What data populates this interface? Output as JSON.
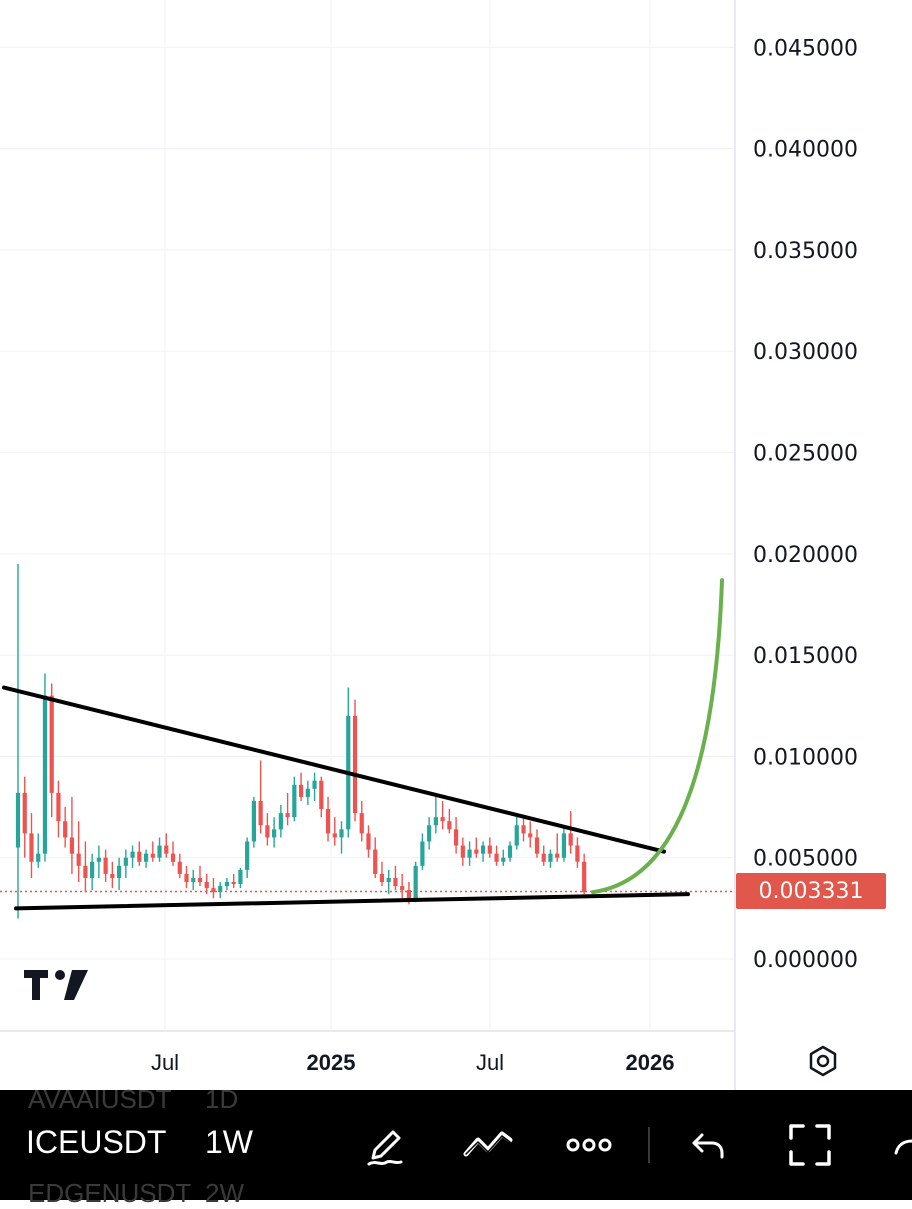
{
  "chart": {
    "price_axis": [
      "0.045000",
      "0.040000",
      "0.035000",
      "0.030000",
      "0.025000",
      "0.020000",
      "0.015000",
      "0.010000",
      "0.005000",
      "0.000000"
    ],
    "time_axis": [
      {
        "label": "Jul",
        "bold": false
      },
      {
        "label": "2025",
        "bold": true
      },
      {
        "label": "Jul",
        "bold": false
      },
      {
        "label": "2026",
        "bold": true
      }
    ],
    "last_price": "0.003331",
    "up_color": "#26a69a",
    "down_color": "#ef5350",
    "last_price_color": "#e2574c",
    "projection_color": "#6ab04c",
    "trendline_color": "#000000"
  },
  "chart_data": {
    "type": "candlestick",
    "symbol": "ICEUSDT",
    "interval": "1W",
    "ylim": [
      -0.0013,
      0.0472
    ],
    "x_ticks": [
      "Jul",
      "2025",
      "Jul",
      "2026"
    ],
    "candles_ohlc": [
      [
        0.0055,
        0.0195,
        0.002,
        0.0082
      ],
      [
        0.0082,
        0.009,
        0.005,
        0.0062
      ],
      [
        0.0062,
        0.0072,
        0.004,
        0.0048
      ],
      [
        0.0048,
        0.0062,
        0.0045,
        0.0052
      ],
      [
        0.0052,
        0.0141,
        0.0048,
        0.013
      ],
      [
        0.013,
        0.0136,
        0.007,
        0.0082
      ],
      [
        0.0082,
        0.0088,
        0.006,
        0.0068
      ],
      [
        0.0068,
        0.0075,
        0.0055,
        0.006
      ],
      [
        0.006,
        0.008,
        0.0042,
        0.0052
      ],
      [
        0.0052,
        0.0068,
        0.0038,
        0.0046
      ],
      [
        0.0046,
        0.0058,
        0.0033,
        0.004
      ],
      [
        0.004,
        0.0052,
        0.0034,
        0.0048
      ],
      [
        0.0048,
        0.0056,
        0.004,
        0.005
      ],
      [
        0.005,
        0.0054,
        0.0038,
        0.0042
      ],
      [
        0.0042,
        0.0048,
        0.0035,
        0.004
      ],
      [
        0.004,
        0.005,
        0.0034,
        0.0046
      ],
      [
        0.0046,
        0.0054,
        0.004,
        0.005
      ],
      [
        0.005,
        0.0056,
        0.0045,
        0.0053
      ],
      [
        0.0053,
        0.0058,
        0.0046,
        0.0048
      ],
      [
        0.0048,
        0.0054,
        0.0045,
        0.0052
      ],
      [
        0.0052,
        0.0058,
        0.0048,
        0.005
      ],
      [
        0.005,
        0.006,
        0.0048,
        0.0056
      ],
      [
        0.0056,
        0.0062,
        0.005,
        0.0052
      ],
      [
        0.0052,
        0.0058,
        0.0046,
        0.0048
      ],
      [
        0.0048,
        0.0052,
        0.004,
        0.0042
      ],
      [
        0.0042,
        0.0046,
        0.0035,
        0.0038
      ],
      [
        0.0038,
        0.0044,
        0.0034,
        0.004
      ],
      [
        0.004,
        0.0046,
        0.0036,
        0.0038
      ],
      [
        0.0038,
        0.0042,
        0.0032,
        0.0035
      ],
      [
        0.0035,
        0.004,
        0.003,
        0.0033
      ],
      [
        0.0033,
        0.0038,
        0.003,
        0.0036
      ],
      [
        0.0036,
        0.004,
        0.0034,
        0.0038
      ],
      [
        0.0038,
        0.0042,
        0.0035,
        0.0037
      ],
      [
        0.0037,
        0.0045,
        0.0035,
        0.0044
      ],
      [
        0.0044,
        0.006,
        0.004,
        0.0058
      ],
      [
        0.0058,
        0.008,
        0.0055,
        0.0078
      ],
      [
        0.0078,
        0.0098,
        0.0062,
        0.0066
      ],
      [
        0.0066,
        0.0072,
        0.0056,
        0.006
      ],
      [
        0.006,
        0.007,
        0.0055,
        0.0064
      ],
      [
        0.0064,
        0.0076,
        0.006,
        0.0072
      ],
      [
        0.0072,
        0.0082,
        0.0066,
        0.007
      ],
      [
        0.007,
        0.009,
        0.0068,
        0.0086
      ],
      [
        0.0086,
        0.0092,
        0.0078,
        0.008
      ],
      [
        0.008,
        0.0088,
        0.0076,
        0.0084
      ],
      [
        0.0084,
        0.0092,
        0.0078,
        0.0088
      ],
      [
        0.0088,
        0.009,
        0.007,
        0.0074
      ],
      [
        0.0074,
        0.008,
        0.0058,
        0.0062
      ],
      [
        0.0062,
        0.007,
        0.0056,
        0.006
      ],
      [
        0.006,
        0.0068,
        0.0052,
        0.0064
      ],
      [
        0.0064,
        0.0134,
        0.006,
        0.012
      ],
      [
        0.012,
        0.0128,
        0.0068,
        0.0072
      ],
      [
        0.0072,
        0.0078,
        0.0058,
        0.0062
      ],
      [
        0.0062,
        0.0066,
        0.005,
        0.0054
      ],
      [
        0.0054,
        0.006,
        0.004,
        0.0042
      ],
      [
        0.0042,
        0.0048,
        0.0036,
        0.0038
      ],
      [
        0.0038,
        0.0044,
        0.0032,
        0.004
      ],
      [
        0.004,
        0.0046,
        0.0034,
        0.0036
      ],
      [
        0.0036,
        0.0042,
        0.003,
        0.0034
      ],
      [
        0.0034,
        0.0038,
        0.0027,
        0.003
      ],
      [
        0.003,
        0.0048,
        0.0028,
        0.0046
      ],
      [
        0.0046,
        0.0062,
        0.0044,
        0.0058
      ],
      [
        0.0058,
        0.007,
        0.0054,
        0.0066
      ],
      [
        0.0066,
        0.0082,
        0.0062,
        0.007
      ],
      [
        0.007,
        0.0078,
        0.0064,
        0.0068
      ],
      [
        0.0068,
        0.0074,
        0.0062,
        0.0064
      ],
      [
        0.0064,
        0.007,
        0.0052,
        0.0056
      ],
      [
        0.0056,
        0.006,
        0.0046,
        0.005
      ],
      [
        0.005,
        0.0058,
        0.0046,
        0.0054
      ],
      [
        0.0054,
        0.006,
        0.005,
        0.0052
      ],
      [
        0.0052,
        0.0058,
        0.0048,
        0.0056
      ],
      [
        0.0056,
        0.006,
        0.005,
        0.0052
      ],
      [
        0.0052,
        0.0056,
        0.0046,
        0.0048
      ],
      [
        0.0048,
        0.0054,
        0.0046,
        0.005
      ],
      [
        0.005,
        0.0058,
        0.0048,
        0.0056
      ],
      [
        0.0056,
        0.0072,
        0.0054,
        0.0066
      ],
      [
        0.0066,
        0.007,
        0.0058,
        0.0062
      ],
      [
        0.0062,
        0.0068,
        0.0055,
        0.006
      ],
      [
        0.006,
        0.0064,
        0.005,
        0.0052
      ],
      [
        0.0052,
        0.0056,
        0.0046,
        0.0048
      ],
      [
        0.0048,
        0.0054,
        0.0045,
        0.0052
      ],
      [
        0.0052,
        0.0062,
        0.0048,
        0.005
      ],
      [
        0.005,
        0.0066,
        0.0048,
        0.0062
      ],
      [
        0.0062,
        0.0073,
        0.0052,
        0.0056
      ],
      [
        0.0056,
        0.006,
        0.0045,
        0.0048
      ],
      [
        0.0048,
        0.0052,
        0.0032,
        0.0033
      ]
    ],
    "last_price": 0.003331,
    "annotations": [
      {
        "type": "trendline",
        "label": "",
        "from": [
          0.0,
          0.0134
        ],
        "to": [
          1.1,
          0.0053
        ]
      },
      {
        "type": "trendline",
        "label": "",
        "from": [
          0.02,
          0.0025
        ],
        "to": [
          1.14,
          0.0032
        ]
      },
      {
        "type": "projection_curve",
        "label": "",
        "from_value": 0.0033,
        "to_value": 0.0187
      }
    ]
  },
  "toolbar": {
    "symbol_prev": "AVAAIUSDT",
    "symbol_current": "ICEUSDT",
    "symbol_next": "EDGENUSDT",
    "interval_prev": "1D",
    "interval_current": "1W",
    "interval_next": "2W",
    "icons": [
      "pen-icon",
      "trend-line-tool-icon",
      "more-icon",
      "undo-icon",
      "fullscreen-icon"
    ]
  }
}
